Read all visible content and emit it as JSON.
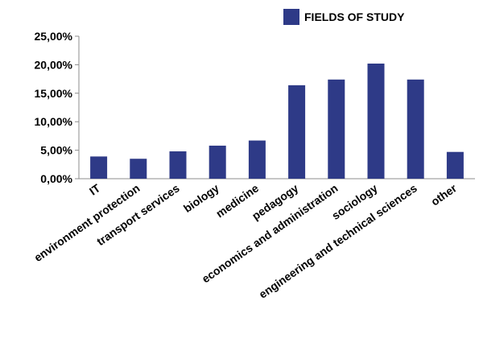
{
  "chart_data": {
    "type": "bar",
    "categories": [
      "IT",
      "environment protection",
      "transport services",
      "biology",
      "medicine",
      "pedagogy",
      "economics and administration",
      "sociology",
      "engineering and technical sciences",
      "other"
    ],
    "series": [
      {
        "name": "FIELDS OF STUDY",
        "values": [
          3.9,
          3.5,
          4.8,
          5.8,
          6.7,
          16.4,
          17.4,
          20.2,
          17.4,
          4.7
        ]
      }
    ],
    "yticks": [
      "0,00%",
      "5,00%",
      "10,00%",
      "15,00%",
      "20,00%",
      "25,00%"
    ],
    "ylim": [
      0,
      25
    ],
    "grid": false,
    "legend_position": "top-right",
    "bar_color": "#2E3A87"
  }
}
